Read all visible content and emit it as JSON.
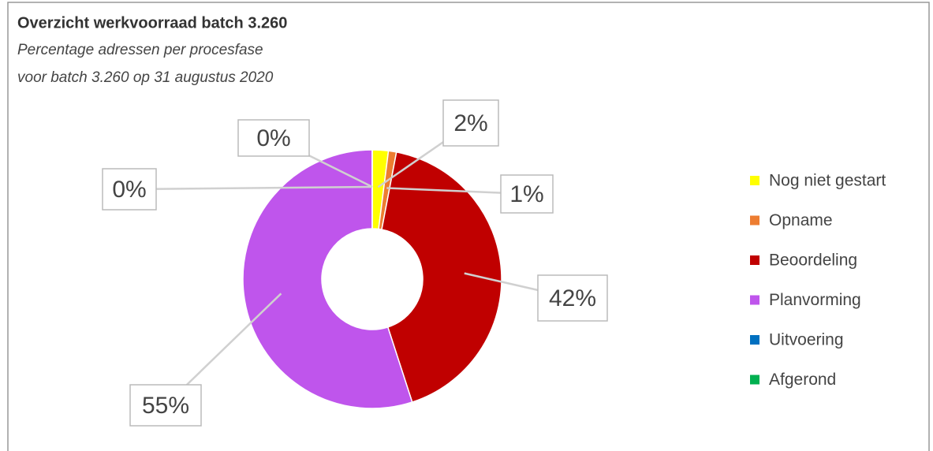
{
  "chart_data": {
    "type": "donut",
    "title": "Overzicht werkvoorraad batch 3.260",
    "subtitle": [
      "Percentage adressen per procesfase",
      "voor batch 3.260 op 31 augustus 2020"
    ],
    "categories": [
      "Nog niet gestart",
      "Opname",
      "Beoordeling",
      "Planvorming",
      "Uitvoering",
      "Afgerond"
    ],
    "values": [
      2,
      1,
      42,
      55,
      0,
      0
    ],
    "value_labels": [
      "2%",
      "1%",
      "42%",
      "55%",
      "0%",
      "0%"
    ],
    "colors": [
      "#ffff00",
      "#ed7d31",
      "#c00000",
      "#bf55ec",
      "#0070c0",
      "#00b050"
    ],
    "legend": "right"
  }
}
